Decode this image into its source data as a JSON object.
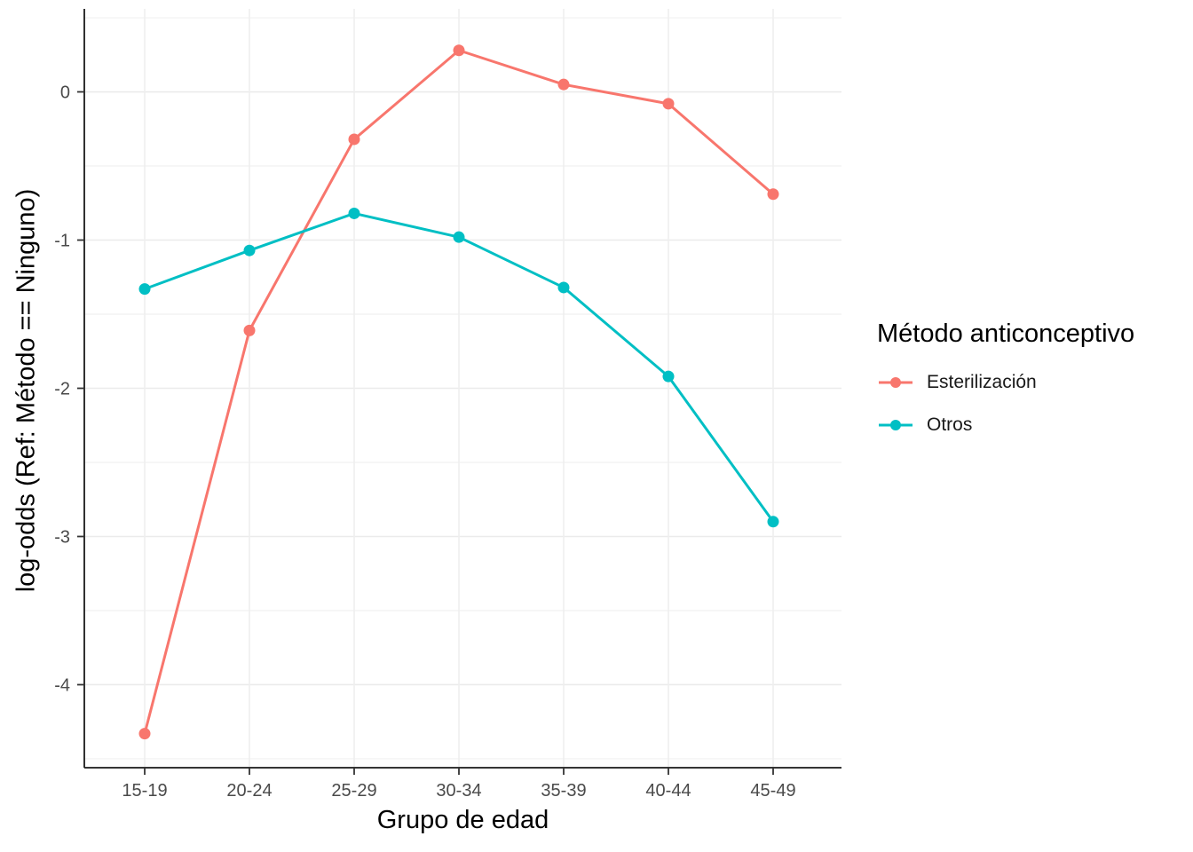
{
  "chart_data": {
    "type": "line",
    "title": "",
    "xlabel": "Grupo de edad",
    "ylabel": "log-odds (Ref: Método == Ninguno)",
    "categories": [
      "15-19",
      "20-24",
      "25-29",
      "30-34",
      "35-39",
      "40-44",
      "45-49"
    ],
    "y_ticks": [
      0,
      -1,
      -2,
      -3,
      -4
    ],
    "ylim": [
      -4.56,
      0.56
    ],
    "grid": true,
    "legend": {
      "title": "Método anticonceptivo",
      "position": "right",
      "entries": [
        {
          "label": "Esterilización",
          "color": "#F8766D"
        },
        {
          "label": "Otros",
          "color": "#00BFC4"
        }
      ]
    },
    "series": [
      {
        "name": "Esterilización",
        "color": "#F8766D",
        "values": [
          -4.33,
          -1.61,
          -0.32,
          0.28,
          0.05,
          -0.08,
          -0.69
        ]
      },
      {
        "name": "Otros",
        "color": "#00BFC4",
        "values": [
          -1.33,
          -1.07,
          -0.82,
          -0.98,
          -1.32,
          -1.92,
          -2.9
        ]
      }
    ]
  }
}
